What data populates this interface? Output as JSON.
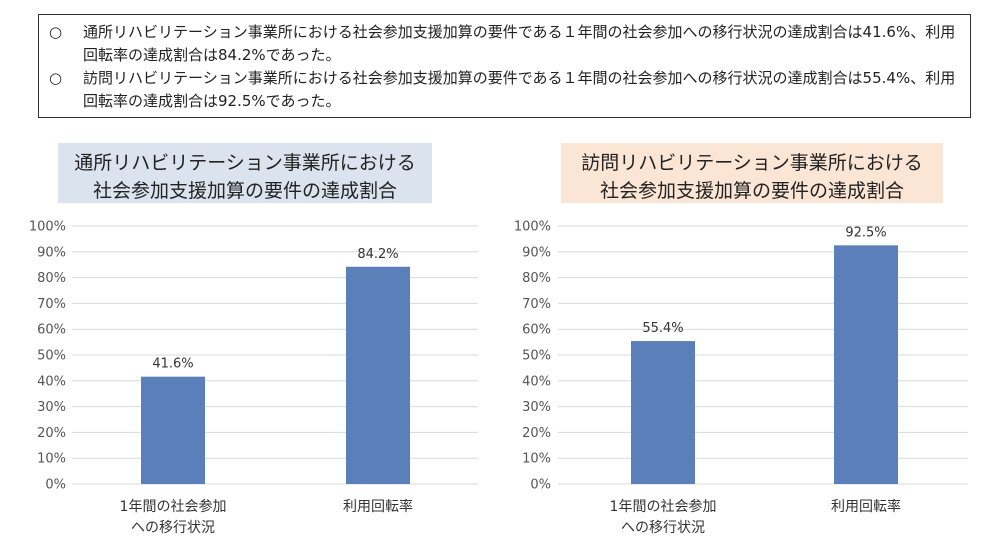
{
  "summary": {
    "items": [
      {
        "marker": "○",
        "text": "通所リハビリテーション事業所における社会参加支援加算の要件である１年間の社会参加への移行状況の達成割合は41.6%、利用回転率の達成割合は84.2%であった。"
      },
      {
        "marker": "○",
        "text": "訪問リハビリテーション事業所における社会参加支援加算の要件である１年間の社会参加への移行状況の達成割合は55.4%、利用回転率の達成割合は92.5%であった。"
      }
    ]
  },
  "colors": {
    "bar": "#5b7fb9",
    "grid": "#d9d9d9",
    "title1_bg": "#dbe3ee",
    "title2_bg": "#fbe5d5"
  },
  "chart_data": [
    {
      "type": "bar",
      "title": "通所リハビリテーション事業所における\n社会参加支援加算の要件の達成割合",
      "categories": [
        "1年間の社会参加\nへの移行状況",
        "利用回転率"
      ],
      "values": [
        41.6,
        84.2
      ],
      "value_labels": [
        "41.6%",
        "84.2%"
      ],
      "ylim": [
        0,
        100
      ],
      "yticks": [
        "0%",
        "10%",
        "20%",
        "30%",
        "40%",
        "50%",
        "60%",
        "70%",
        "80%",
        "90%",
        "100%"
      ],
      "grid": true
    },
    {
      "type": "bar",
      "title": "訪問リハビリテーション事業所における\n社会参加支援加算の要件の達成割合",
      "categories": [
        "1年間の社会参加\nへの移行状況",
        "利用回転率"
      ],
      "values": [
        55.4,
        92.5
      ],
      "value_labels": [
        "55.4%",
        "92.5%"
      ],
      "ylim": [
        0,
        100
      ],
      "yticks": [
        "0%",
        "10%",
        "20%",
        "30%",
        "40%",
        "50%",
        "60%",
        "70%",
        "80%",
        "90%",
        "100%"
      ],
      "grid": true
    }
  ]
}
